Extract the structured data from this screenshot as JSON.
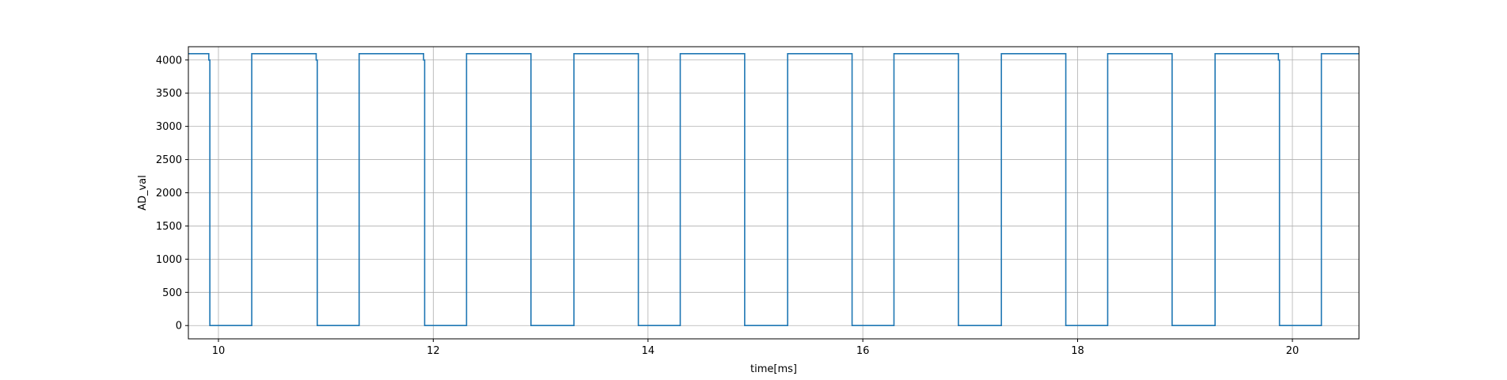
{
  "chart_data": {
    "type": "line",
    "xlabel": "time[ms]",
    "ylabel": "AD_val",
    "xlim": [
      9.72,
      20.62
    ],
    "ylim": [
      -200,
      4200
    ],
    "xticks": [
      10,
      12,
      14,
      16,
      18,
      20
    ],
    "xtick_labels": [
      "10",
      "12",
      "14",
      "16",
      "18",
      "20"
    ],
    "yticks": [
      0,
      500,
      1000,
      1500,
      2000,
      2500,
      3000,
      3500,
      4000
    ],
    "ytick_labels": [
      "0",
      "500",
      "1000",
      "1500",
      "2000",
      "2500",
      "3000",
      "3500",
      "4000"
    ],
    "grid": true,
    "series": [
      {
        "color": "#1f77b4",
        "x": [
          9.72,
          9.91,
          9.91,
          9.92,
          9.92,
          10.31,
          10.31,
          10.91,
          10.91,
          10.92,
          10.92,
          11.31,
          11.31,
          11.91,
          11.91,
          11.92,
          11.92,
          12.31,
          12.31,
          12.91,
          12.91,
          13.31,
          13.31,
          13.91,
          13.91,
          14.3,
          14.3,
          14.9,
          14.9,
          15.3,
          15.3,
          15.9,
          15.9,
          16.29,
          16.29,
          16.89,
          16.89,
          17.29,
          17.29,
          17.89,
          17.89,
          18.28,
          18.28,
          18.88,
          18.88,
          19.28,
          19.28,
          19.87,
          19.87,
          19.88,
          19.88,
          20.27,
          20.27,
          20.62
        ],
        "y": [
          4095,
          4095,
          4000,
          4000,
          0,
          0,
          4095,
          4095,
          4000,
          4000,
          0,
          0,
          4095,
          4095,
          4000,
          4000,
          0,
          0,
          4095,
          4095,
          0,
          0,
          4095,
          4095,
          0,
          0,
          4095,
          4095,
          0,
          0,
          4095,
          4095,
          0,
          0,
          4095,
          4095,
          0,
          0,
          4095,
          4095,
          0,
          0,
          4095,
          4095,
          0,
          0,
          4095,
          4095,
          4000,
          4000,
          0,
          0,
          4095,
          4095
        ]
      }
    ]
  }
}
